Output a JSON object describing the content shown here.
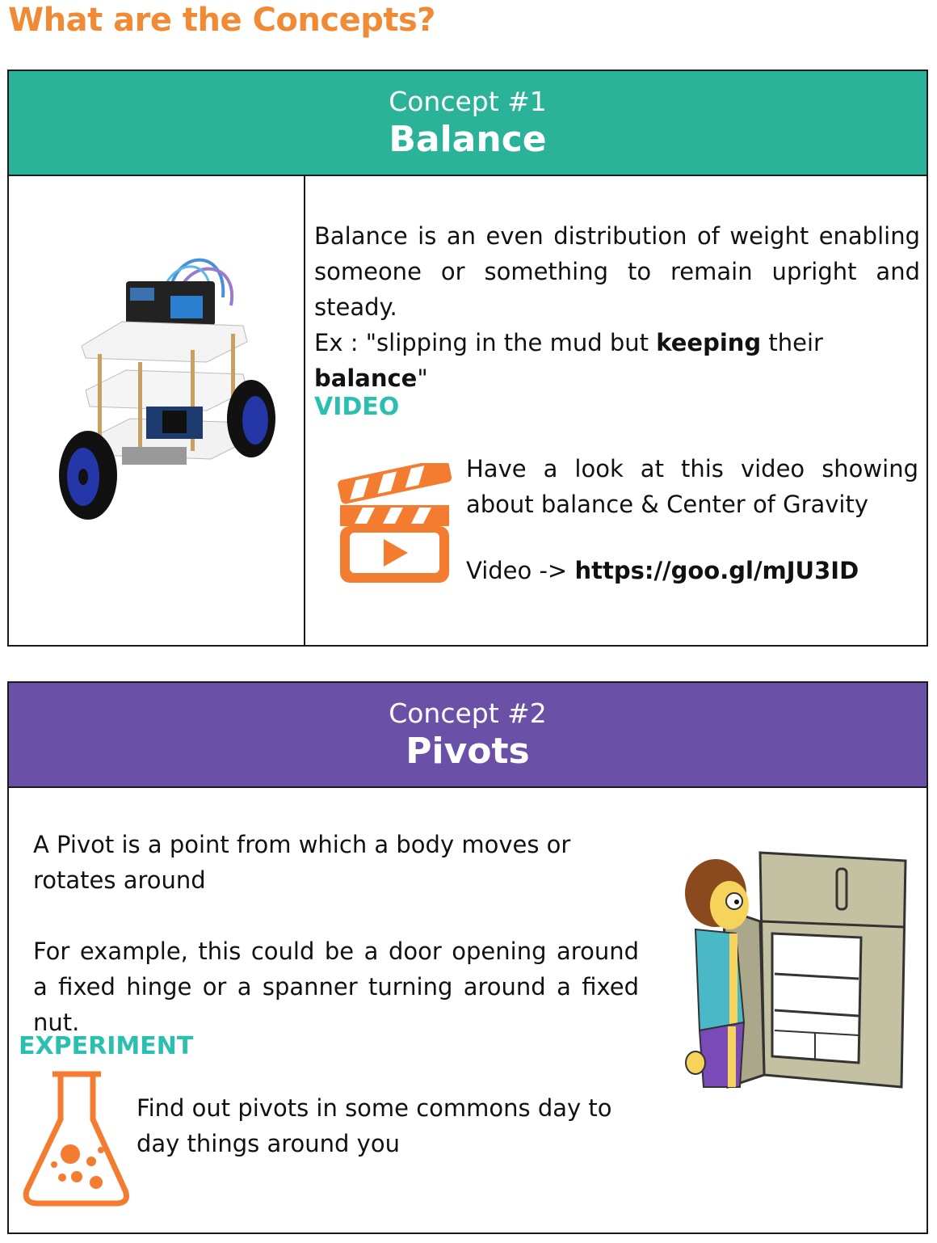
{
  "page_title": "What are the Concepts?",
  "concept1": {
    "number": "Concept #1",
    "name": "Balance",
    "definition": "Balance is an even distribution of weight enabling someone or something to remain upright and steady.",
    "example_prefix": "Ex : \"slipping in the mud but ",
    "example_bold1": "keeping",
    "example_mid": " their ",
    "example_bold2": "balance",
    "example_suffix": "\"",
    "video_label": "VIDEO",
    "video_text": "Have a look at this video showing about balance & Center of Gravity",
    "video_prefix": "Video -> ",
    "video_link": "https://goo.gl/mJU3ID"
  },
  "concept2": {
    "number": "Concept #2",
    "name": "Pivots",
    "definition": "A Pivot is a point from which a body moves or rotates around",
    "example": "For example, this could be a door opening around a fixed hinge or a spanner turning around a fixed nut.",
    "experiment_label": "EXPERIMENT",
    "experiment_text": "Find out pivots in some commons day to day things around you"
  },
  "colors": {
    "title_orange": "#f08a35",
    "teal_header": "#2bb39a",
    "purple_header": "#6a50a7",
    "label_teal": "#2bbfb0",
    "icon_orange": "#f47c30"
  },
  "icons": [
    "self-balancing-robot-image",
    "clapperboard-icon",
    "flask-icon",
    "man-at-fridge-image"
  ]
}
